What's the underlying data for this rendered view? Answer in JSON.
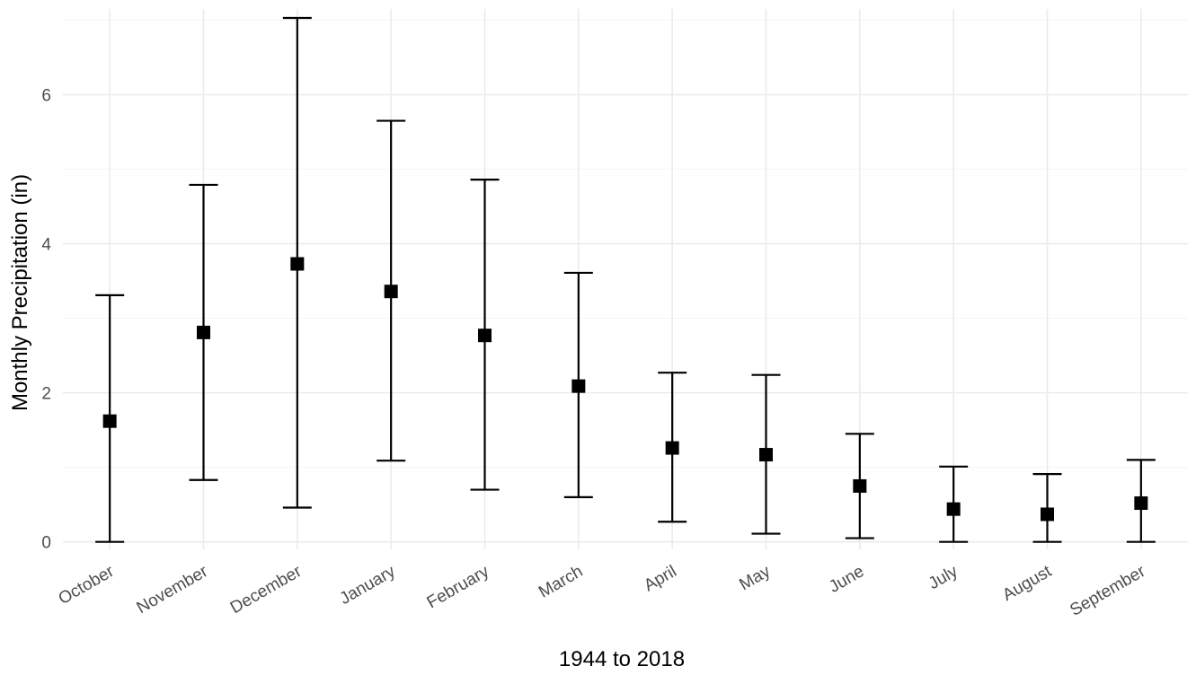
{
  "chart_data": {
    "type": "scatter",
    "subtype": "point-with-errorbars",
    "title": "",
    "xlabel": "1944 to 2018",
    "ylabel": "Monthly Precipitation (in)",
    "ylim": [
      -0.1,
      7.15
    ],
    "yticks": [
      0,
      2,
      4,
      6
    ],
    "grid": true,
    "x_tick_rotation_deg": 30,
    "marker": "square",
    "color": "#000000",
    "categories": [
      "October",
      "November",
      "December",
      "January",
      "February",
      "March",
      "April",
      "May",
      "June",
      "July",
      "August",
      "September"
    ],
    "values": [
      1.62,
      2.81,
      3.73,
      3.36,
      2.77,
      2.09,
      1.26,
      1.17,
      0.75,
      0.44,
      0.37,
      0.52
    ],
    "lower": [
      0.0,
      0.83,
      0.46,
      1.09,
      0.7,
      0.6,
      0.27,
      0.11,
      0.05,
      0.0,
      0.0,
      0.0
    ],
    "upper": [
      3.31,
      4.79,
      7.03,
      5.65,
      4.86,
      3.61,
      2.27,
      2.24,
      1.45,
      1.01,
      0.91,
      1.1
    ]
  }
}
